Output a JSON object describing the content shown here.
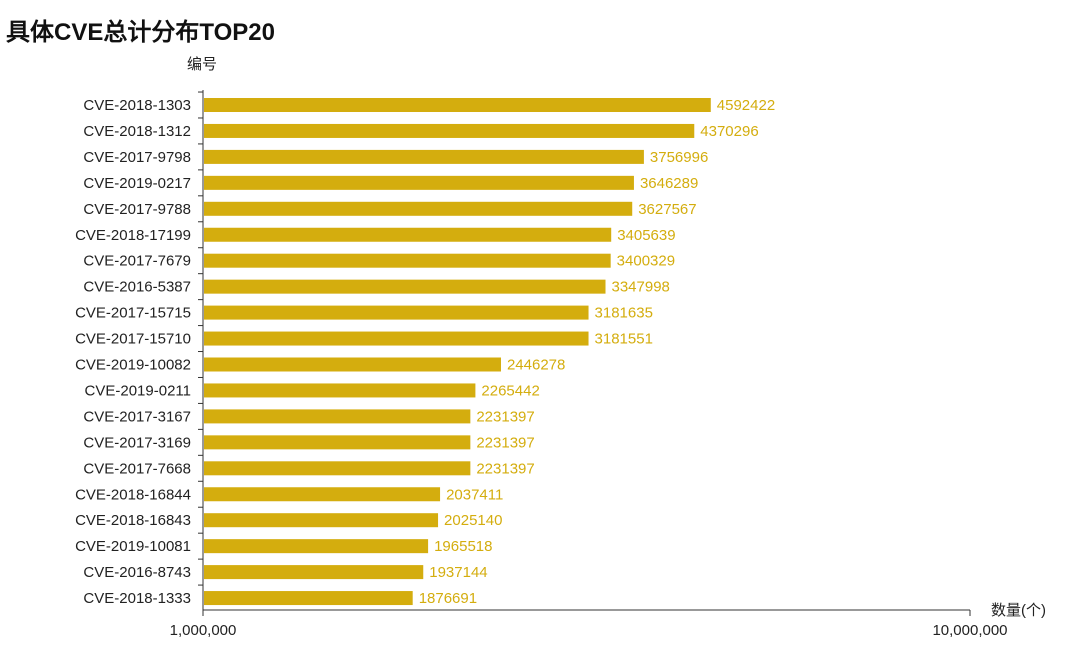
{
  "chart_data": {
    "type": "bar",
    "orientation": "horizontal",
    "title": "具体CVE总计分布TOP20",
    "ylabel": "编号",
    "xlabel": "数量(个)",
    "x_scale": "log",
    "xlim": [
      1000000,
      10000000
    ],
    "x_tick_labels": [
      "1,000,000",
      "10,000,000"
    ],
    "categories": [
      "CVE-2018-1303",
      "CVE-2018-1312",
      "CVE-2017-9798",
      "CVE-2019-0217",
      "CVE-2017-9788",
      "CVE-2018-17199",
      "CVE-2017-7679",
      "CVE-2016-5387",
      "CVE-2017-15715",
      "CVE-2017-15710",
      "CVE-2019-10082",
      "CVE-2019-0211",
      "CVE-2017-3167",
      "CVE-2017-3169",
      "CVE-2017-7668",
      "CVE-2018-16844",
      "CVE-2018-16843",
      "CVE-2019-10081",
      "CVE-2016-8743",
      "CVE-2018-1333"
    ],
    "values": [
      4592422,
      4370296,
      3756996,
      3646289,
      3627567,
      3405639,
      3400329,
      3347998,
      3181635,
      3181551,
      2446278,
      2265442,
      2231397,
      2231397,
      2231397,
      2037411,
      2025140,
      1965518,
      1937144,
      1876691
    ],
    "value_labels": [
      "4592422",
      "4370296",
      "3756996",
      "3646289",
      "3627567",
      "3405639",
      "3400329",
      "3347998",
      "3181635",
      "3181551",
      "2446278",
      "2265442",
      "2231397",
      "2231397",
      "2231397",
      "2037411",
      "2025140",
      "1965518",
      "1937144",
      "1876691"
    ],
    "grid": false,
    "legend": "none",
    "bar_color": "#d4ad0e",
    "label_color": "#d4ad0e"
  }
}
